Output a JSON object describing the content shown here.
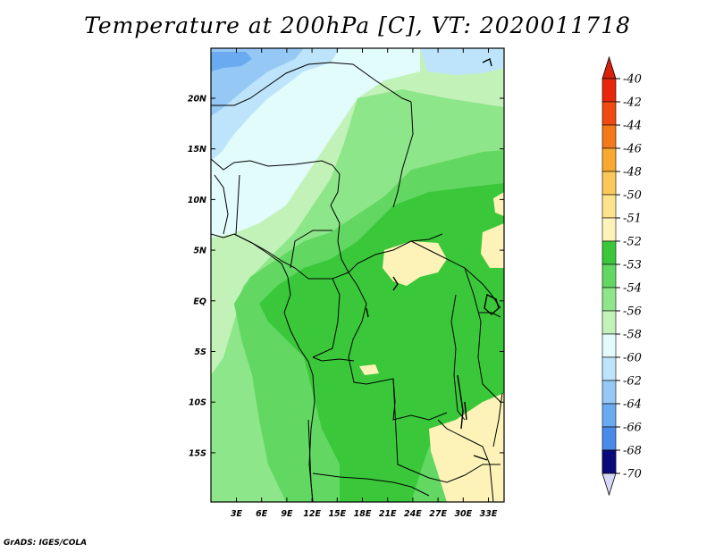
{
  "title": "Temperature at 200hPa [C], VT: 2020011718",
  "credit": "GrADS: IGES/COLA",
  "map": {
    "lon_ticks": [
      "3E",
      "6E",
      "9E",
      "12E",
      "15E",
      "18E",
      "21E",
      "24E",
      "27E",
      "30E",
      "33E"
    ],
    "lat_ticks": [
      "20N",
      "15N",
      "10N",
      "5N",
      "EQ",
      "5S",
      "10S",
      "15S"
    ]
  },
  "colorbar": {
    "entries": [
      {
        "label": "-40",
        "color": "#e8260c"
      },
      {
        "label": "-42",
        "color": "#f04a10"
      },
      {
        "label": "-44",
        "color": "#f5781a"
      },
      {
        "label": "-46",
        "color": "#f9a830"
      },
      {
        "label": "-48",
        "color": "#fcc85a"
      },
      {
        "label": "-50",
        "color": "#fde48c"
      },
      {
        "label": "-51",
        "color": "#fdf3b8"
      },
      {
        "label": "-52",
        "color": "#3ac83a"
      },
      {
        "label": "-53",
        "color": "#62d862"
      },
      {
        "label": "-54",
        "color": "#8ee68a"
      },
      {
        "label": "-56",
        "color": "#c2f2b8"
      },
      {
        "label": "-58",
        "color": "#e2fbfb"
      },
      {
        "label": "-60",
        "color": "#bde4fa"
      },
      {
        "label": "-62",
        "color": "#95c8f5"
      },
      {
        "label": "-64",
        "color": "#6aaaf0"
      },
      {
        "label": "-66",
        "color": "#4a8ae8"
      },
      {
        "label": "-68",
        "color": "#2c66d8"
      },
      {
        "label": "-70",
        "color": "#1844b8"
      }
    ],
    "top_arrow_color": "#d8200c",
    "bottom_arrow_color": "#d8d8f8",
    "bottom_segment_color": "#0a0a7a"
  }
}
